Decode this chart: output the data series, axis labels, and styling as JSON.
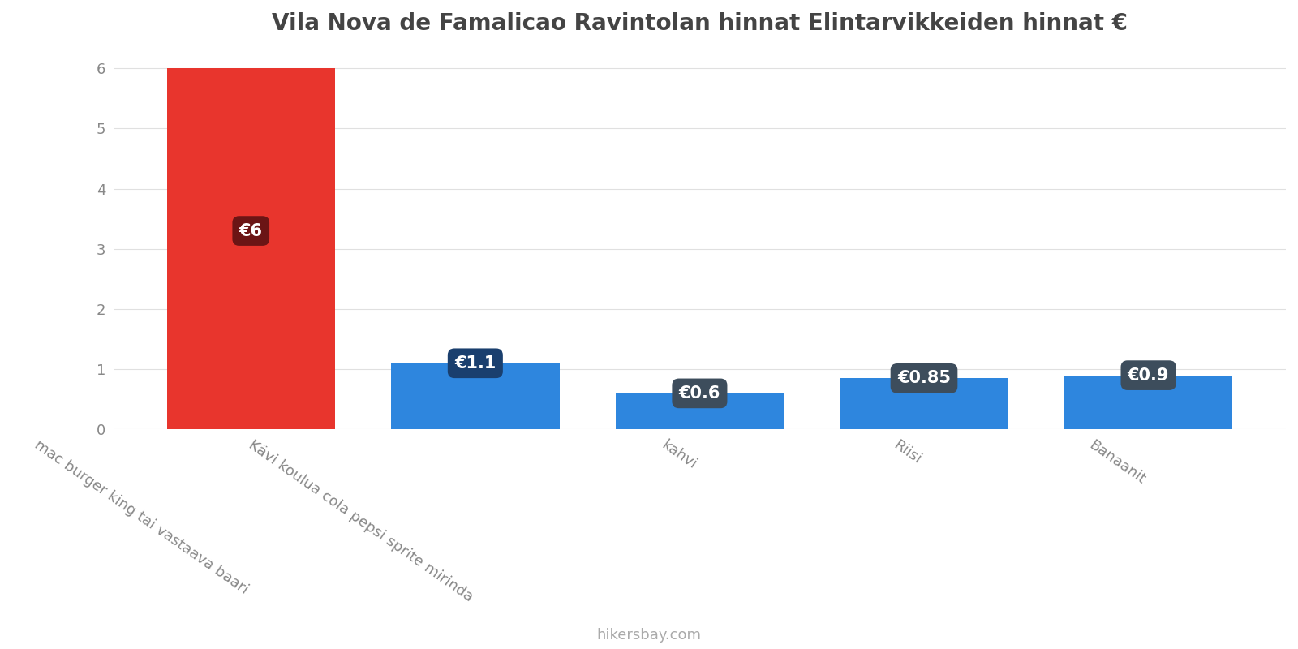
{
  "title": "Vila Nova de Famalicao Ravintolan hinnat Elintarvikkeiden hinnat €",
  "categories": [
    "mac burger king tai vastaava baari",
    "Kävi koulua cola pepsi sprite mirinda",
    "kahvi",
    "Riisi",
    "Banaanit"
  ],
  "values": [
    6.0,
    1.1,
    0.6,
    0.85,
    0.9
  ],
  "bar_colors": [
    "#e8352d",
    "#2e86de",
    "#2e86de",
    "#2e86de",
    "#2e86de"
  ],
  "label_bg_colors": [
    "#6b1515",
    "#1a3f6e",
    "#3d4d5c",
    "#3d4d5c",
    "#3d4d5c"
  ],
  "labels": [
    "€6",
    "€1.1",
    "€0.6",
    "€0.85",
    "€0.9"
  ],
  "ylim": [
    0,
    6.3
  ],
  "yticks": [
    0,
    1,
    2,
    3,
    4,
    5,
    6
  ],
  "background_color": "#ffffff",
  "title_fontsize": 20,
  "tick_fontsize": 13,
  "label_fontsize": 15,
  "footer_text": "hikersbay.com",
  "footer_color": "#aaaaaa",
  "bar_width": 0.75,
  "label_rotation": -35
}
